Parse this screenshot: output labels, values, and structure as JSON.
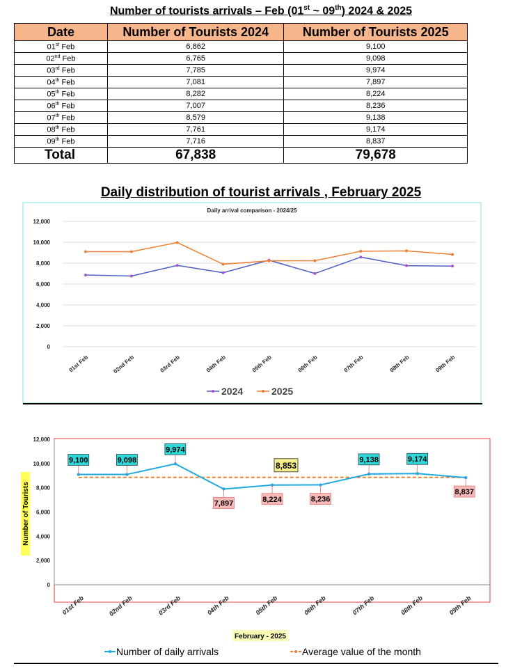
{
  "table": {
    "title_text": "Number of tourists arrivals – Feb (01",
    "title_sup1": "st",
    "title_mid": " ~ 09",
    "title_sup2": "th",
    "title_end": ") 2024 & 2025",
    "headers": [
      "Date",
      "Number of Tourists 2024",
      "Number of Tourists 2025"
    ],
    "rows": [
      {
        "day": "01",
        "sup": "st",
        "rest": " Feb",
        "v2024": "6,862",
        "v2025": "9,100"
      },
      {
        "day": "02",
        "sup": "nd",
        "rest": " Feb",
        "v2024": "6,765",
        "v2025": "9,098"
      },
      {
        "day": "03",
        "sup": "rd",
        "rest": " Feb",
        "v2024": "7,785",
        "v2025": "9,974"
      },
      {
        "day": "04",
        "sup": "th",
        "rest": " Feb",
        "v2024": "7,081",
        "v2025": "7,897"
      },
      {
        "day": "05",
        "sup": "th",
        "rest": " Feb",
        "v2024": "8,282",
        "v2025": "8,224"
      },
      {
        "day": "06",
        "sup": "th",
        "rest": " Feb",
        "v2024": "7,007",
        "v2025": "8,236"
      },
      {
        "day": "07",
        "sup": "th",
        "rest": " Feb",
        "v2024": "8,579",
        "v2025": "9,138"
      },
      {
        "day": "08",
        "sup": "th",
        "rest": " Feb",
        "v2024": "7,761",
        "v2025": "9,174"
      },
      {
        "day": "09",
        "sup": "th",
        "rest": " Feb",
        "v2024": "7,716",
        "v2025": "8,837"
      }
    ],
    "total": {
      "label": "Total",
      "v2024": "67,838",
      "v2025": "79,678"
    }
  },
  "section2_title": "Daily distribution of tourist arrivals , February 2025",
  "chart_data": [
    {
      "type": "line",
      "title": "Daily arrival comparison - 2024/25",
      "categories": [
        "01st Feb",
        "02nd Feb",
        "03rd Feb",
        "04th Feb",
        "05th Feb",
        "06th Feb",
        "07th Feb",
        "08th Feb",
        "09th Feb"
      ],
      "series": [
        {
          "name": "2024",
          "values": [
            6862,
            6765,
            7785,
            7081,
            8282,
            7007,
            8579,
            7761,
            7716
          ],
          "color": "#4a5dbf",
          "marker_color": "#a64fd8"
        },
        {
          "name": "2025",
          "values": [
            9100,
            9098,
            9974,
            7897,
            8224,
            8236,
            9138,
            9174,
            8837
          ],
          "color": "#ed7d31"
        }
      ],
      "ylim": [
        0,
        12000
      ],
      "yticks": [
        "0",
        "2,000",
        "4,000",
        "6,000",
        "8,000",
        "10,000",
        "12,000"
      ],
      "grid": true,
      "legend": "bottom-center",
      "border_color": "#7fe0dd"
    },
    {
      "type": "line",
      "title": "",
      "categories": [
        "01st Feb",
        "02nd Feb",
        "03rd Feb",
        "04th Feb",
        "05th Feb",
        "06th Feb",
        "07th Feb",
        "08th Feb",
        "09th Feb"
      ],
      "series": [
        {
          "name": "Number of daily arrivals",
          "values": [
            9100,
            9098,
            9974,
            7897,
            8224,
            8236,
            9138,
            9174,
            8837
          ],
          "color": "#1fa8e0"
        },
        {
          "name": "Average value of the month",
          "values": [
            8853,
            8853,
            8853,
            8853,
            8853,
            8853,
            8853,
            8853,
            8853
          ],
          "color": "#ed7d31"
        }
      ],
      "data_labels": [
        "9,100",
        "9,098",
        "9,974",
        "7,897",
        "8,224",
        "8,236",
        "9,138",
        "9,174",
        "8,837"
      ],
      "label_above": [
        true,
        true,
        true,
        false,
        false,
        false,
        true,
        true,
        false
      ],
      "average_label": "8,853",
      "average_label_category": "05th Feb",
      "ylabel": "Number of Tourists",
      "xlabel": "February - 2025",
      "ylim": [
        0,
        12000
      ],
      "yticks": [
        "0",
        "2,000",
        "4,000",
        "6,000",
        "8,000",
        "10,000",
        "12,000"
      ],
      "grid": false,
      "legend": "bottom-center",
      "colors": {
        "above_label_bg": "#2fd8d8",
        "below_label_bg": "#f7b8b8",
        "average_label_bg": "#f5ee8e",
        "ylabel_bg": "#ffff55",
        "xlabel_bg": "#fbfbb8",
        "border": "#e53b3b"
      }
    }
  ]
}
